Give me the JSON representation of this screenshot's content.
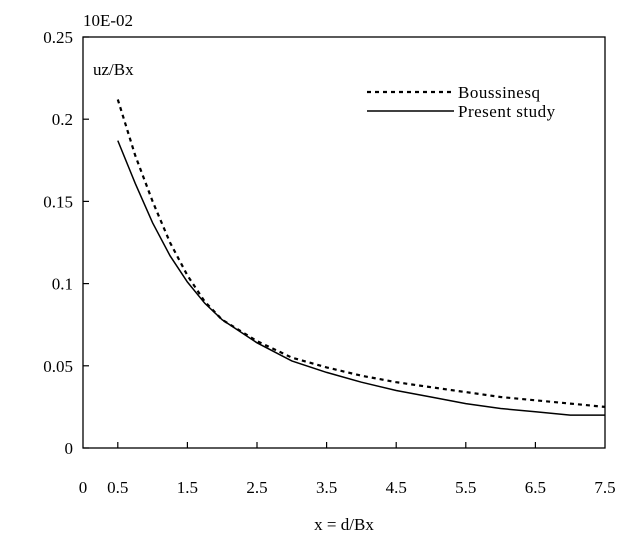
{
  "chart_data": {
    "type": "line",
    "scale_note": "10E-02",
    "ylabel": "uz/Bx",
    "xlabel": "x = d/Bx",
    "xlim": [
      0,
      7.5
    ],
    "ylim": [
      0,
      0.25
    ],
    "x_ticks": [
      "0",
      "0.5",
      "1.5",
      "2.5",
      "3.5",
      "4.5",
      "5.5",
      "6.5",
      "7.5"
    ],
    "x_tick_values": [
      0,
      0.5,
      1.5,
      2.5,
      3.5,
      4.5,
      5.5,
      6.5,
      7.5
    ],
    "y_ticks": [
      "0",
      "0.05",
      "0.1",
      "0.15",
      "0.2",
      "0.25"
    ],
    "y_tick_values": [
      0,
      0.05,
      0.1,
      0.15,
      0.2,
      0.25
    ],
    "grid": false,
    "legend_position": "top-right",
    "series": [
      {
        "name": "Boussinesq",
        "style": "dotted",
        "color": "#000000",
        "x": [
          0.5,
          0.75,
          1.0,
          1.25,
          1.5,
          1.75,
          2.0,
          2.5,
          3.0,
          3.5,
          4.0,
          4.5,
          5.0,
          5.5,
          6.0,
          6.5,
          7.0,
          7.5
        ],
        "y": [
          0.212,
          0.178,
          0.15,
          0.125,
          0.105,
          0.089,
          0.078,
          0.065,
          0.055,
          0.049,
          0.044,
          0.04,
          0.037,
          0.034,
          0.031,
          0.029,
          0.027,
          0.025
        ]
      },
      {
        "name": "Present study",
        "style": "solid",
        "color": "#000000",
        "x": [
          0.5,
          0.75,
          1.0,
          1.25,
          1.5,
          1.75,
          2.0,
          2.5,
          3.0,
          3.5,
          4.0,
          4.5,
          5.0,
          5.5,
          6.0,
          6.5,
          7.0,
          7.5
        ],
        "y": [
          0.187,
          0.161,
          0.137,
          0.117,
          0.101,
          0.088,
          0.078,
          0.064,
          0.053,
          0.046,
          0.04,
          0.035,
          0.031,
          0.027,
          0.024,
          0.022,
          0.02,
          0.02
        ]
      }
    ]
  }
}
